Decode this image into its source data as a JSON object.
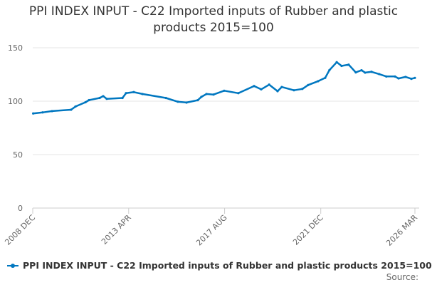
{
  "chart_data": {
    "type": "line",
    "title": "PPI INDEX INPUT - C22 Imported inputs of Rubber and plastic products 2015=100",
    "xlabel": "",
    "ylabel": "",
    "ylim": [
      0,
      150
    ],
    "xlim": [
      2008.92,
      2026.17
    ],
    "yticks": [
      0,
      50,
      100,
      150
    ],
    "xticks": [
      {
        "label": "2008 DEC",
        "x": 2008.92
      },
      {
        "label": "2013 APR",
        "x": 2013.25
      },
      {
        "label": "2017 AUG",
        "x": 2017.58
      },
      {
        "label": "2021 DEC",
        "x": 2021.92
      },
      {
        "label": "2026 MAR",
        "x": 2026.17
      }
    ],
    "grid": true,
    "legend_position": "bottom-left",
    "series": [
      {
        "name": "PPI INDEX INPUT - C22 Imported inputs of Rubber and plastic products 2015=100",
        "color": "#0077c0",
        "x": [
          2008.94,
          2009.37,
          2009.79,
          2010.65,
          2010.85,
          2011.3,
          2011.46,
          2011.94,
          2012.1,
          2012.26,
          2012.97,
          2013.13,
          2013.48,
          2013.87,
          2014.93,
          2015.47,
          2015.86,
          2016.37,
          2016.53,
          2016.76,
          2017.08,
          2017.56,
          2018.2,
          2018.91,
          2019.23,
          2019.59,
          2019.97,
          2020.16,
          2020.71,
          2021.09,
          2021.35,
          2021.8,
          2022.12,
          2022.31,
          2022.64,
          2022.86,
          2023.18,
          2023.5,
          2023.76,
          2023.92,
          2024.21,
          2024.56,
          2024.88,
          2025.27,
          2025.43,
          2025.75,
          2026.01,
          2026.17
        ],
        "values": [
          88.5,
          89.5,
          90.7,
          92.0,
          95.0,
          99.0,
          101.0,
          103.0,
          104.7,
          102.2,
          103.0,
          107.5,
          108.5,
          106.7,
          103.0,
          99.5,
          98.7,
          100.9,
          104.0,
          106.7,
          106.2,
          109.8,
          107.5,
          114.2,
          111.1,
          115.5,
          109.3,
          113.3,
          110.2,
          111.5,
          115.1,
          118.7,
          121.8,
          129.0,
          136.5,
          133.0,
          134.2,
          126.9,
          128.9,
          126.7,
          127.5,
          125.3,
          123.1,
          123.1,
          121.3,
          122.7,
          120.9,
          121.8
        ]
      }
    ],
    "source_label": "Source:"
  }
}
